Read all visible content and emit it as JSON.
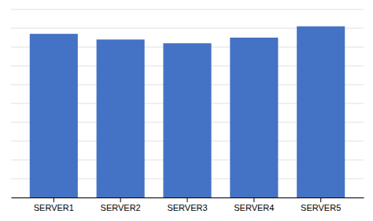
{
  "chart_data": {
    "type": "bar",
    "categories": [
      "SERVER1",
      "SERVER2",
      "SERVER3",
      "SERVER4",
      "SERVER5"
    ],
    "values": [
      87,
      84,
      82,
      85,
      91
    ],
    "color": "#4472C4",
    "ylim": [
      0,
      100
    ],
    "yticks": [
      0,
      10,
      20,
      30,
      40,
      50,
      60,
      70,
      80,
      90,
      100
    ],
    "grid": true,
    "tick_labels": "x"
  }
}
